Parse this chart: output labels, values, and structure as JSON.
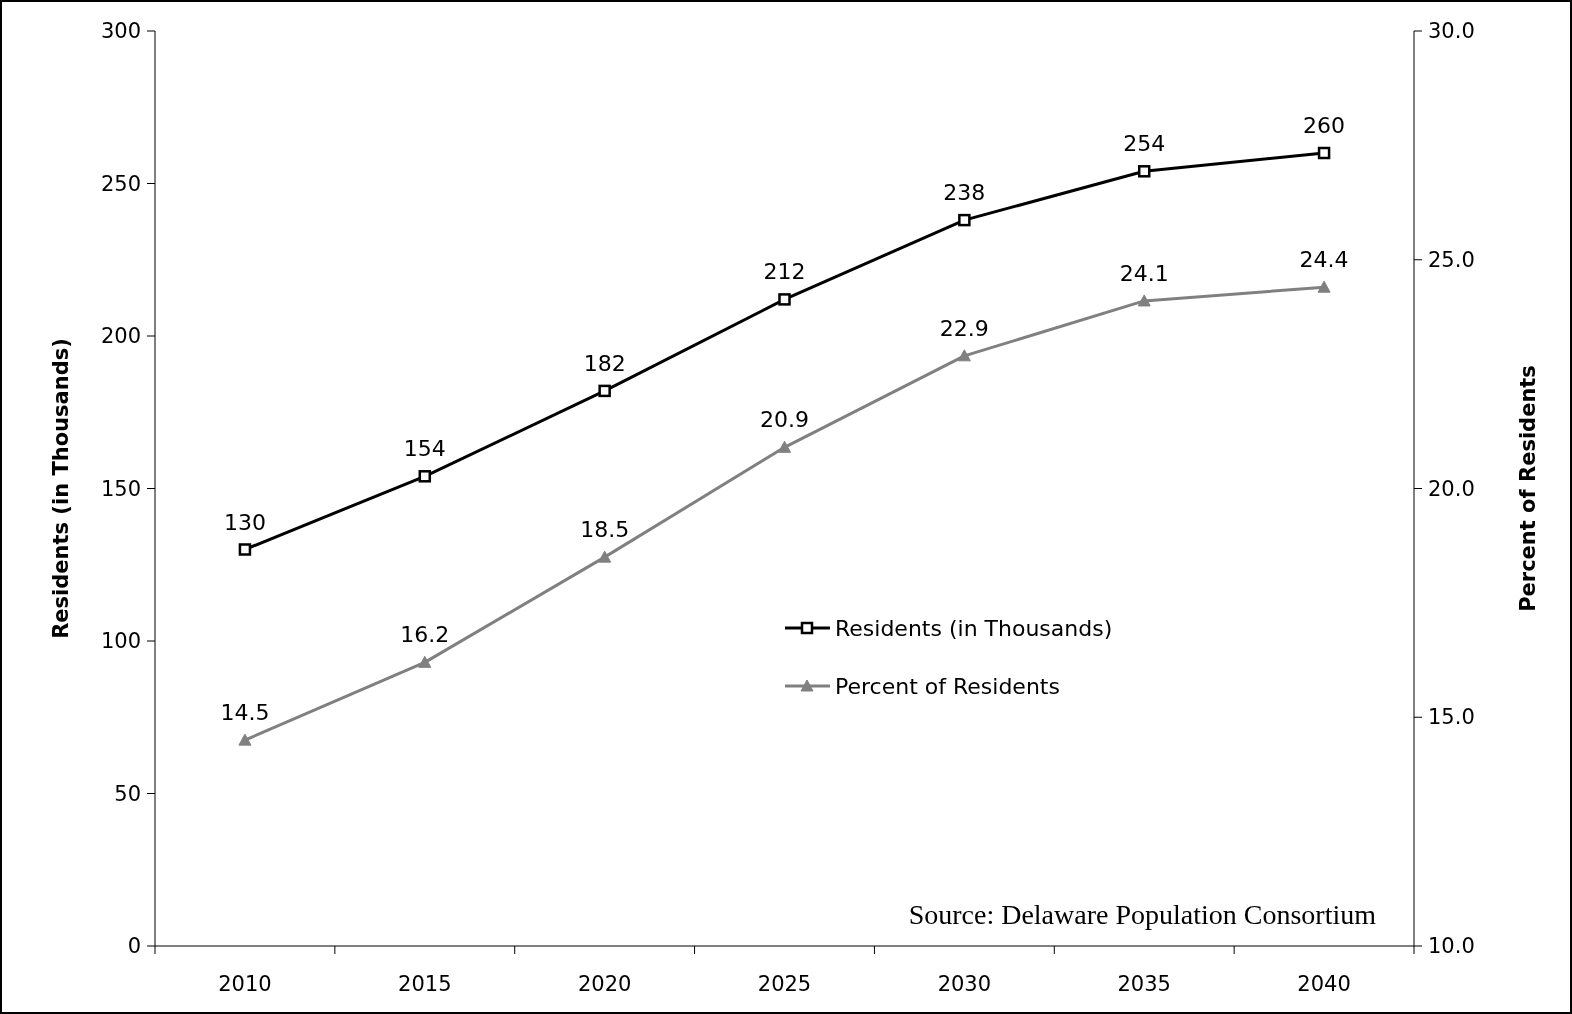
{
  "chart_data": {
    "type": "line",
    "categories": [
      "2010",
      "2015",
      "2020",
      "2025",
      "2030",
      "2035",
      "2040"
    ],
    "series": [
      {
        "name": "Residents (in Thousands)",
        "color": "#000000",
        "marker": "square",
        "values": [
          130,
          154,
          182,
          212,
          238,
          254,
          260
        ]
      },
      {
        "name": "Percent of Residents",
        "color": "#808080",
        "marker": "triangle",
        "axis": "y2",
        "values": [
          14.5,
          16.2,
          18.5,
          20.9,
          22.9,
          24.1,
          24.4
        ]
      }
    ],
    "ylabel": "Residents (in Thousands)",
    "y2label": "Percent of Residents",
    "ylim": [
      0,
      300
    ],
    "yticks": [
      0,
      50,
      100,
      150,
      200,
      250,
      300
    ],
    "y2lim": [
      10,
      30
    ],
    "y2ticks": [
      {
        "value": 10,
        "label": "10.0"
      },
      {
        "value": 15,
        "label": "15.0"
      },
      {
        "value": 20,
        "label": "20.0"
      },
      {
        "value": 25,
        "label": "25.0"
      },
      {
        "value": 30,
        "label": "30.0"
      }
    ],
    "data_labels": true,
    "legend": "right",
    "grid": false,
    "annotations": [
      "Source: Delaware Population Consortium"
    ]
  }
}
